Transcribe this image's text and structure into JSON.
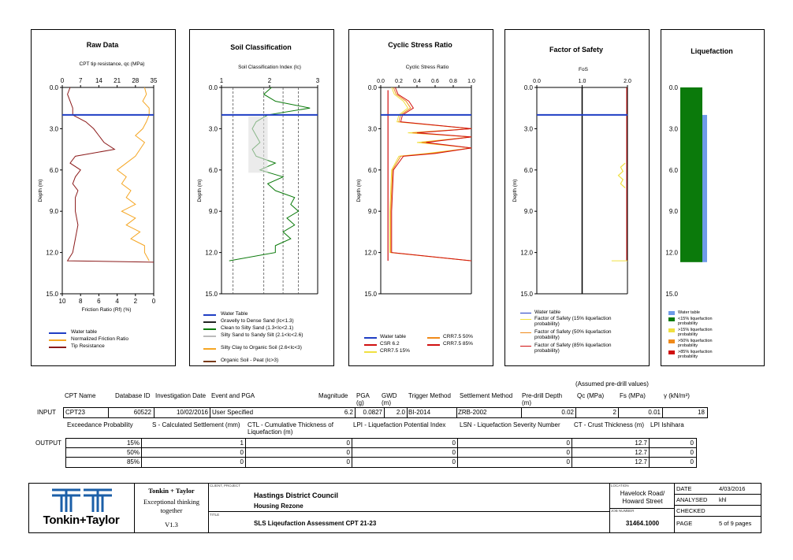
{
  "panels": {
    "raw": {
      "title": "Raw Data",
      "top_axis": "CPT tip resistance, qc (MPa)",
      "top_ticks": [
        "0",
        "7",
        "14",
        "21",
        "28",
        "35"
      ],
      "bottom_axis": "Friction Ratio (Rf) (%)",
      "bottom_ticks": [
        "10",
        "8",
        "6",
        "4",
        "2",
        "0"
      ],
      "legend": [
        "Water table",
        "Normalized Friction Ratio",
        "Tip Resistance"
      ]
    },
    "soil": {
      "title": "Soil Classification",
      "top_axis": "Soil Classification Index (Ic)",
      "top_ticks": [
        "1",
        "2",
        "3"
      ],
      "legend": [
        "Water Table",
        "Gravelly to Dense Sand (Ic<1.3)",
        "Clean to Silty Sand (1.3<Ic<2.1)",
        "Silty Sand to Sandy Silt (2.1<Ic<2.6)",
        "Silty Clay to Organic Soil (2.6<Ic<3)",
        "Organic Soil - Peat (Ic>3)"
      ]
    },
    "csr": {
      "title": "Cyclic Stress Ratio",
      "top_axis": "Cyclic Stress Ratio",
      "top_ticks": [
        "0.0",
        "0.2",
        "0.4",
        "0.6",
        "0.8",
        "1.0"
      ],
      "legend_left": [
        "Water table",
        "CSR 6.2",
        "CRR7.5 15%"
      ],
      "legend_right": [
        "CRR7.5 50%",
        "CRR7.5 85%"
      ]
    },
    "fos": {
      "title": "Factor of Safety",
      "top_axis": "FoS",
      "top_ticks": [
        "0.0",
        "1.0",
        "2.0"
      ],
      "legend": [
        "Water table",
        "Factor of Safety (15% liquefaction probability)",
        "Factor of Safety (50% liquefaction probability)",
        "Factor of Safety (85% liquefaction probability)"
      ]
    },
    "liq": {
      "title": "Liquefaction",
      "legend": [
        "Water table",
        "<15% liquefaction probability",
        ">15% liquefaction probability",
        ">50% liquefaction probability",
        ">85% liquefaction probability"
      ]
    },
    "depth_label": "Depth (m)",
    "depth_ticks": [
      "0.0",
      "3.0",
      "6.0",
      "9.0",
      "12.0",
      "15.0"
    ]
  },
  "input_table": {
    "assumed_note": "(Assumed pre-drill values)",
    "row_label": "INPUT",
    "headers": {
      "cpt_name": "CPT Name",
      "database_id": "Database ID",
      "investigation_date": "Investigation Date",
      "event": "Event and PGA",
      "magnitude": "Magnitude",
      "pga": "PGA (g)",
      "gwd": "GWD (m)",
      "trigger": "Trigger Method",
      "settlement": "Settlement Method",
      "predrill": "Pre-drill Depth (m)",
      "qc": "Qc (MPa)",
      "fs": "Fs (MPa)",
      "gamma": "γ (kN/m³)"
    },
    "values": {
      "cpt_name": "CPT23",
      "database_id": "60522",
      "investigation_date": "10/02/2016",
      "event": "User Specified",
      "magnitude": "6.2",
      "pga": "0.0827",
      "gwd": "2.0",
      "trigger": "BI-2014",
      "settlement": "ZRB-2002",
      "predrill": "0.02",
      "qc": "2",
      "fs": "0.01",
      "gamma": "18"
    }
  },
  "output_table": {
    "row_label": "OUTPUT",
    "headers": {
      "exceedance": "Exceedance Probability",
      "s": "S - Calculated Settlement (mm)",
      "ctl": "CTL - Cumulative Thickness of Liquefaction (m)",
      "lpi": "LPI - Liquefaction Potential Index",
      "lsn": "LSN - Liquefaction Severity Number",
      "ct": "CT - Crust Thickness (m)",
      "lpi_ish": "LPI Ishihara"
    },
    "rows": [
      {
        "exceedance": "15%",
        "s": "1",
        "ctl": "0",
        "lpi": "0",
        "lsn": "0",
        "ct": "12.7",
        "lpi_ish": "0"
      },
      {
        "exceedance": "50%",
        "s": "0",
        "ctl": "0",
        "lpi": "0",
        "lsn": "0",
        "ct": "12.7",
        "lpi_ish": "0"
      },
      {
        "exceedance": "85%",
        "s": "0",
        "ctl": "0",
        "lpi": "0",
        "lsn": "0",
        "ct": "12.7",
        "lpi_ish": "0"
      }
    ]
  },
  "title_block": {
    "logo_text": "Tonkin+Taylor",
    "company": "Tonkin + Taylor",
    "tagline": "Exceptional thinking together",
    "version": "V1.3",
    "client_project_label": "CLIENT, PROJECT",
    "client": "Hastings District Council",
    "project": "Housing Rezone",
    "title_label": "TITLE",
    "title": "SLS Liqeufaction Assessment CPT 21-23",
    "location_label": "LOCATION",
    "location": "Havelock Road/ Howard Street",
    "job_label": "JOB NUMBER",
    "job_number": "31464.1000",
    "date_label": "DATE",
    "date": "4/03/2016",
    "analysed_label": "ANALYSED",
    "analysed": "khl",
    "checked_label": "CHECKED",
    "checked": "",
    "page_label": "PAGE",
    "page": "5 of 9 pages"
  },
  "colors": {
    "water": "#1f3ec4",
    "tip": "#8b1a1a",
    "friction": "#f5a623",
    "green": "#0b7a0b",
    "csr": "#d01010",
    "yellow": "#f0e040",
    "orange": "#f08a1a",
    "bar_blue": "#6f9be8"
  }
}
